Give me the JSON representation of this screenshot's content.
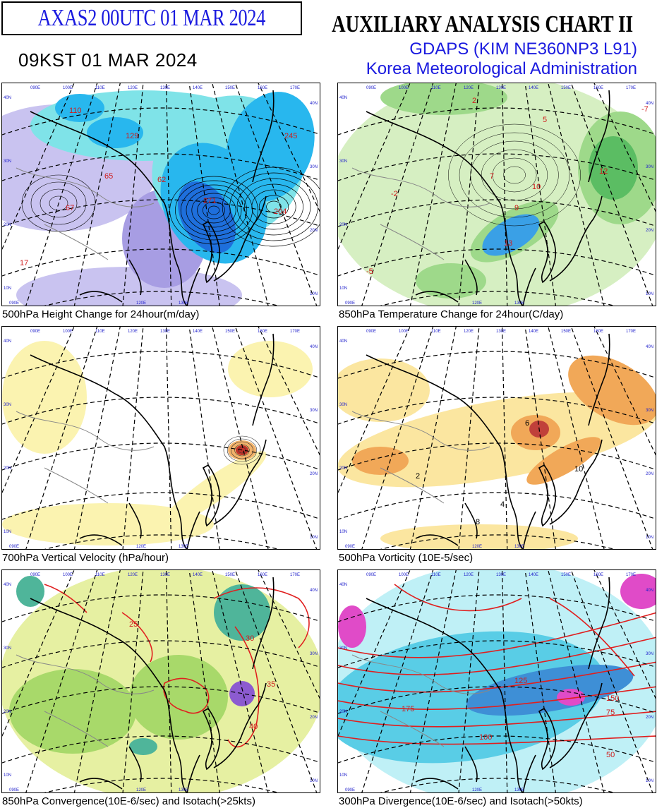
{
  "header": {
    "product_box": "AXAS2  00UTC 01 MAR 2024",
    "local_time": "09KST 01 MAR 2024",
    "chart_title": "AUXILIARY ANALYSIS CHART II",
    "model": "GDAPS (KIM NE360NP3 L91)",
    "agency": "Korea Meteorological Administration"
  },
  "panels": [
    {
      "id": "p1",
      "caption": "500hPa Height Change for 24hour(m/day)",
      "labels": [
        "110",
        "129",
        "65",
        "62",
        "67",
        "17",
        "245",
        "271",
        "204",
        "20",
        "40",
        "60",
        "80",
        "100",
        "120",
        "140"
      ],
      "colors": {
        "neg_light": "#c9c3f0",
        "neg_mid": "#a79de3",
        "pos_light": "#7fe3e8",
        "pos_mid": "#28b7ee",
        "pos_dark": "#1e6fdc"
      }
    },
    {
      "id": "p2",
      "caption": "850hPa Temperature Change for 24hour(C/day)",
      "labels": [
        "2",
        "5",
        "7",
        "9",
        "10",
        "12",
        "13",
        "-2",
        "-5",
        "-7"
      ],
      "colors": {
        "green_light": "#d6efc2",
        "green_mid": "#9ed98a",
        "green_dark": "#5bbd63",
        "blue": "#3aa0e6"
      }
    },
    {
      "id": "p3",
      "caption": "700hPa Vertical Velocity (hPa/hour)",
      "labels": [],
      "colors": {
        "yellow": "#fbf3b0",
        "orange": "#f2b26a",
        "red": "#c0322a"
      }
    },
    {
      "id": "p4",
      "caption": "500hPa Vorticity (10E-5/sec)",
      "labels": [
        "10",
        "4",
        "2",
        "6",
        "8"
      ],
      "colors": {
        "yellow": "#fbe6a0",
        "orange": "#f1a858",
        "red": "#c0403a"
      }
    },
    {
      "id": "p5",
      "caption": "850hPa Convergence(10E-6/sec) and Isotach(>25kts)",
      "labels": [
        "25",
        "30",
        "35",
        "40"
      ],
      "colors": {
        "yellowgreen": "#e6f0a2",
        "green": "#a8d96a",
        "teal": "#4fb59a",
        "purple": "#8c5bd0",
        "isotach": "#e01f1f"
      }
    },
    {
      "id": "p6",
      "caption": "300hPa Divergence(10E-6/sec) and Isotach(>50kts)",
      "labels": [
        "50",
        "75",
        "100",
        "125",
        "150",
        "175"
      ],
      "colors": {
        "cyan_light": "#bff0f6",
        "cyan": "#59cde6",
        "blue": "#3e8fd6",
        "magenta": "#e04bc8",
        "isotach": "#e01f1f"
      }
    }
  ],
  "map_grid": {
    "lon_labels": [
      "090E",
      "100E",
      "110E",
      "120E",
      "130E",
      "140E",
      "150E",
      "160E",
      "170E"
    ],
    "lat_labels": [
      "10N",
      "20N",
      "30N",
      "40N"
    ]
  }
}
